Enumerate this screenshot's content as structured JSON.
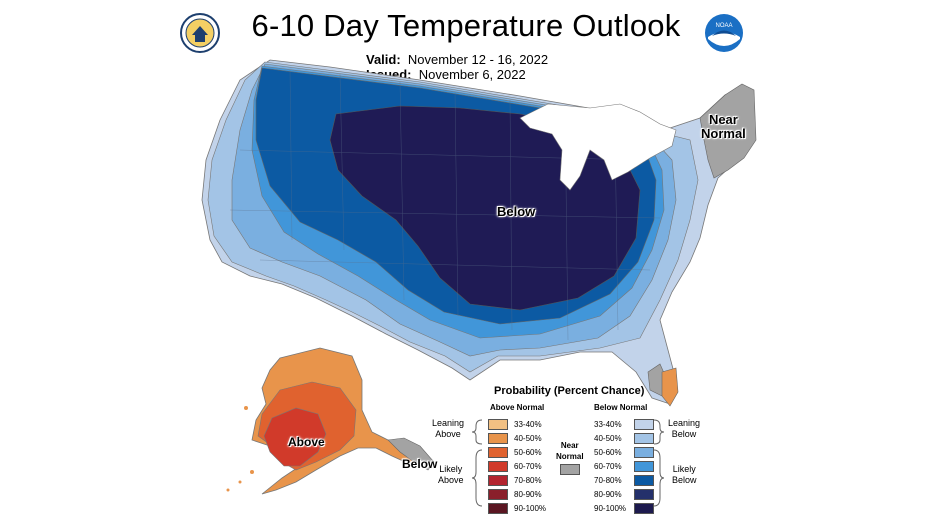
{
  "header": {
    "title": "6-10 Day Temperature Outlook",
    "valid_label": "Valid:",
    "valid_value": "November 12 - 16, 2022",
    "issued_label": "Issued:",
    "issued_value": "November 6, 2022",
    "noaa_text": "NOAA"
  },
  "map": {
    "labels": {
      "below": "Below",
      "near": "Near",
      "normal": "Normal",
      "above": "Above",
      "below_ak": "Below"
    }
  },
  "legend": {
    "title": "Probability (Percent Chance)",
    "above_head": "Above Normal",
    "below_head": "Below Normal",
    "near_label_1": "Near",
    "near_label_2": "Normal",
    "above_rows": [
      {
        "range": "33-40%",
        "color": "#f2c083"
      },
      {
        "range": "40-50%",
        "color": "#e8944b"
      },
      {
        "range": "50-60%",
        "color": "#e0622f"
      },
      {
        "range": "60-70%",
        "color": "#d13a2a"
      },
      {
        "range": "70-80%",
        "color": "#b3242f"
      },
      {
        "range": "80-90%",
        "color": "#8a1f2b"
      },
      {
        "range": "90-100%",
        "color": "#5a1622"
      }
    ],
    "below_rows": [
      {
        "range": "33-40%",
        "color": "#c2d3ea"
      },
      {
        "range": "40-50%",
        "color": "#a3c4e6"
      },
      {
        "range": "50-60%",
        "color": "#7aafe0"
      },
      {
        "range": "60-70%",
        "color": "#4196d9"
      },
      {
        "range": "70-80%",
        "color": "#0c5aa3"
      },
      {
        "range": "80-90%",
        "color": "#24306b"
      },
      {
        "range": "90-100%",
        "color": "#1d1a4e"
      }
    ],
    "near_color": "#a3a3a3",
    "groups": {
      "leaning_above_1": "Leaning",
      "leaning_above_2": "Above",
      "likely_above_1": "Likely",
      "likely_above_2": "Above",
      "leaning_below_1": "Leaning",
      "leaning_below_2": "Below",
      "likely_below_1": "Likely",
      "likely_below_2": "Below"
    }
  }
}
